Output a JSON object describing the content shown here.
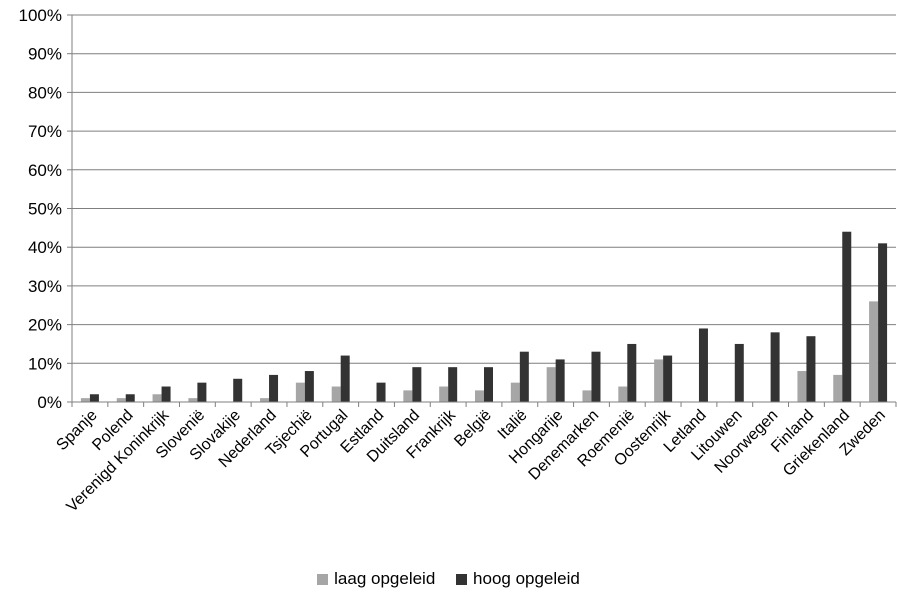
{
  "chart_data": {
    "type": "bar",
    "categories": [
      "Spanje",
      "Polend",
      "Verenigd Koninkrijk",
      "Slovenië",
      "Slovakije",
      "Nederland",
      "Tsjechië",
      "Portugal",
      "Estland",
      "Duitsland",
      "Frankrijk",
      "België",
      "Italië",
      "Hongarije",
      "Denemarken",
      "Roemenië",
      "Oostenrijk",
      "Letland",
      "Litouwen",
      "Noorwegen",
      "Finland",
      "Griekenland",
      "Zweden"
    ],
    "series": [
      {
        "name": "laag opgeleid",
        "color": "#a6a6a6",
        "values": [
          1,
          1,
          2,
          1,
          0,
          1,
          5,
          4,
          0,
          3,
          4,
          3,
          5,
          9,
          3,
          4,
          11,
          0,
          0,
          0,
          8,
          7,
          26
        ]
      },
      {
        "name": "hoog opgeleid",
        "color": "#333333",
        "values": [
          2,
          2,
          4,
          5,
          6,
          7,
          8,
          12,
          5,
          9,
          9,
          9,
          13,
          11,
          13,
          15,
          12,
          19,
          15,
          18,
          17,
          44,
          41
        ]
      }
    ],
    "yticks": [
      "0%",
      "10%",
      "20%",
      "30%",
      "40%",
      "50%",
      "60%",
      "70%",
      "80%",
      "90%",
      "100%"
    ],
    "ylim": [
      0,
      100
    ],
    "grid": true,
    "legend_position": "bottom"
  }
}
